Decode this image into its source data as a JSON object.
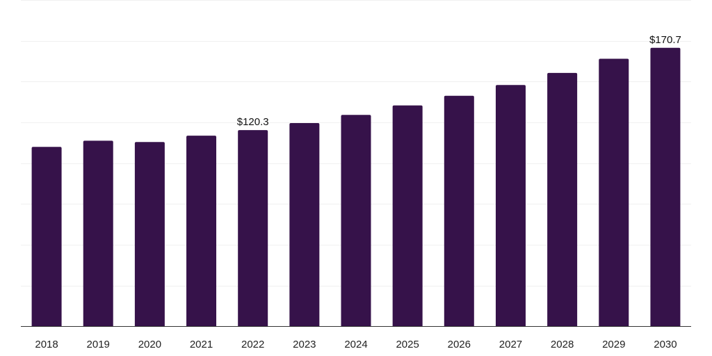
{
  "chart_data": {
    "type": "bar",
    "categories": [
      "2018",
      "2019",
      "2020",
      "2021",
      "2022",
      "2023",
      "2024",
      "2025",
      "2026",
      "2027",
      "2028",
      "2029",
      "2030"
    ],
    "values": [
      110.0,
      113.8,
      113.0,
      116.9,
      120.3,
      124.6,
      129.6,
      135.4,
      141.3,
      147.9,
      155.3,
      164.0,
      170.7
    ],
    "data_labels": [
      {
        "category": "2022",
        "text": "$120.3"
      },
      {
        "category": "2030",
        "text": "$170.7"
      }
    ],
    "title": "",
    "xlabel": "",
    "ylabel": "",
    "ylim": [
      0,
      200
    ],
    "grid": true,
    "legend": "none",
    "bar_color": "#36124a"
  }
}
